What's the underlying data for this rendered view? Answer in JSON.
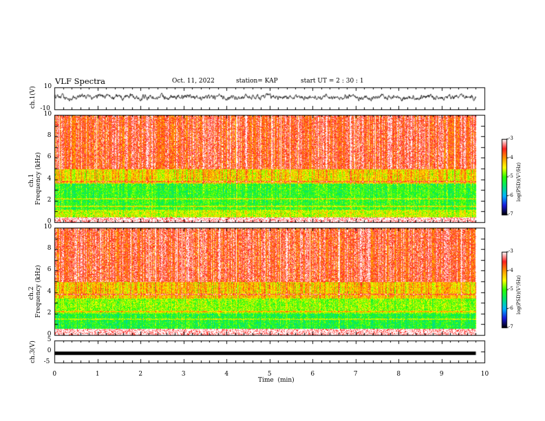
{
  "header": {
    "title": "VLF Spectra",
    "date": "Oct. 11, 2022",
    "station": "station= KAP",
    "start_ut": "start  UT =  2 : 30 : 1"
  },
  "colorbar_labels": {
    "ticks": [
      "-3",
      "-4",
      "-5",
      "-6",
      "-7"
    ],
    "unit": "log(PSD)(V²/Hz)"
  },
  "chart_data": [
    {
      "type": "line",
      "panel": "ch1-waveform",
      "ylabel": "ch.1(V)",
      "ylim": [
        -10,
        10
      ],
      "ytick_labels": [
        "10",
        "-10"
      ],
      "xlim": [
        0,
        10
      ],
      "data_end_min": 9.8,
      "description_of_values": "noise-like oscillation, mostly between -3 and 5 V",
      "series": [
        {
          "values_min": -3,
          "values_max": 5,
          "mean": 1.0
        }
      ]
    },
    {
      "type": "heatmap",
      "panel": "ch1-spectrogram",
      "ylabel": "ch.1 Frequency (kHz)",
      "ylim": [
        0,
        10
      ],
      "ytick_labels": [
        "0",
        "2",
        "4",
        "6",
        "8",
        "10"
      ],
      "xlim": [
        0,
        10
      ],
      "data_end_min": 9.8,
      "color_range": [
        -7,
        -3
      ],
      "colorscale": [
        "#000000",
        "#1a1adc",
        "#00b4ff",
        "#00e676",
        "#28ff00",
        "#ffff00",
        "#ff9900",
        "#ff2020",
        "#ffffff"
      ],
      "bands_khz": [
        {
          "from": 0.0,
          "to": 0.5,
          "level": -3.1
        },
        {
          "from": 0.5,
          "to": 1.2,
          "level": -4.6
        },
        {
          "from": 1.2,
          "to": 3.6,
          "level": -5.1
        },
        {
          "from": 3.6,
          "to": 5.0,
          "level": -4.3
        },
        {
          "from": 5.0,
          "to": 10.0,
          "level": -3.5
        }
      ]
    },
    {
      "type": "heatmap",
      "panel": "ch2-spectrogram",
      "ylabel": "ch.2 Frequency (kHz)",
      "ylim": [
        0,
        10
      ],
      "ytick_labels": [
        "0",
        "2",
        "4",
        "6",
        "8",
        "10"
      ],
      "xlim": [
        0,
        10
      ],
      "data_end_min": 9.8,
      "color_range": [
        -7,
        -3
      ],
      "colorscale": [
        "#000000",
        "#1a1adc",
        "#00b4ff",
        "#00e676",
        "#28ff00",
        "#ffff00",
        "#ff9900",
        "#ff2020",
        "#ffffff"
      ],
      "bands_khz": [
        {
          "from": 0.0,
          "to": 0.6,
          "level": -3.1
        },
        {
          "from": 0.6,
          "to": 2.0,
          "level": -5.2
        },
        {
          "from": 2.0,
          "to": 3.4,
          "level": -4.8
        },
        {
          "from": 3.4,
          "to": 5.0,
          "level": -4.2
        },
        {
          "from": 5.0,
          "to": 10.0,
          "level": -3.5
        }
      ]
    },
    {
      "type": "line",
      "panel": "ch3-waveform",
      "ylabel": "ch.3(V)",
      "ylim": [
        -5,
        5
      ],
      "ytick_labels": [
        "5",
        "0",
        "-5"
      ],
      "xlim": [
        0,
        10
      ],
      "data_end_min": 9.8,
      "series": [
        {
          "constant_value": -0.8
        }
      ]
    }
  ],
  "x_axis": {
    "label": "Time  (min)",
    "tick_labels": [
      "0",
      "1",
      "2",
      "3",
      "4",
      "5",
      "6",
      "7",
      "8",
      "9",
      "10"
    ]
  }
}
